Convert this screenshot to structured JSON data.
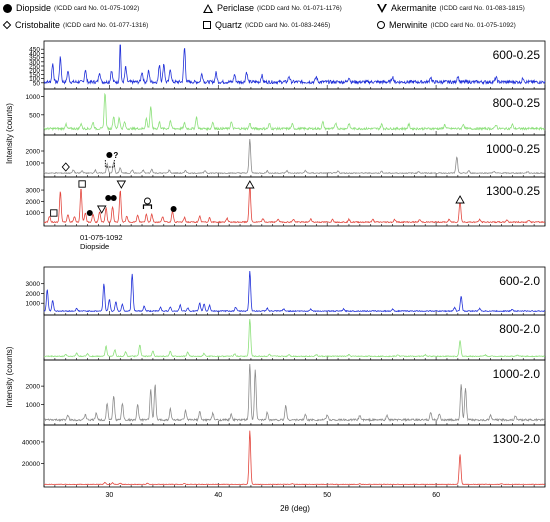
{
  "legend": [
    {
      "symbol": "filled-circle",
      "icon": "filled-circle-icon",
      "name": "Diopside",
      "card": "(ICDD card No. 01-075-1092)"
    },
    {
      "symbol": "open-triangle-up",
      "icon": "open-triangle-icon",
      "name": "Periclase",
      "card": "(ICDD card No. 01-071-1176)"
    },
    {
      "symbol": "open-triangle-down",
      "icon": "open-inverted-triangle-icon",
      "name": "Akermanite",
      "card": "(ICDD card No. 01-083-1815)"
    },
    {
      "symbol": "open-diamond",
      "icon": "open-diamond-icon",
      "name": "Cristobalite",
      "card": "(ICDD card No. 01-077-1316)"
    },
    {
      "symbol": "open-square",
      "icon": "open-square-icon",
      "name": "Quartz",
      "card": "(ICDD card No. 01-083-2465)"
    },
    {
      "symbol": "open-circle",
      "icon": "open-circle-icon",
      "name": "Merwinite",
      "card": "(ICDD card No. 01-075-1092)"
    }
  ],
  "chart_data": [
    {
      "type": "line",
      "xlabel": "",
      "ylabel": "Intensity (counts)",
      "xlim": [
        24,
        70
      ],
      "x_ticks": [
        30,
        40,
        50,
        60
      ],
      "x_tick_labels": [
        "",
        "",
        "",
        ""
      ],
      "grid": false,
      "panels": [
        {
          "name": "600-0.25",
          "color": "#1f2fd8",
          "ylim": [
            0,
            500
          ],
          "y_ticks": [
            50,
            100,
            150,
            200,
            250,
            300,
            350,
            400,
            450
          ],
          "peaks": [
            [
              24.8,
              220
            ],
            [
              25.5,
              290
            ],
            [
              26.2,
              130
            ],
            [
              27.8,
              150
            ],
            [
              29.1,
              120
            ],
            [
              30.2,
              140
            ],
            [
              31.5,
              180
            ],
            [
              33.0,
              120
            ],
            [
              33.6,
              130
            ],
            [
              34.6,
              210
            ],
            [
              35.0,
              220
            ],
            [
              35.6,
              160
            ],
            [
              36.9,
              410
            ],
            [
              38.5,
              100
            ],
            [
              39.8,
              110
            ],
            [
              41.5,
              90
            ],
            [
              42.6,
              120
            ],
            [
              44.0,
              80
            ],
            [
              46.5,
              70
            ],
            [
              49.0,
              60
            ],
            [
              52.0,
              60
            ],
            [
              56.0,
              65
            ],
            [
              59.5,
              60
            ],
            [
              62.0,
              75
            ],
            [
              65.5,
              55
            ],
            [
              68.0,
              50
            ]
          ],
          "spike": [
            31.0,
            500
          ],
          "baseline": 40,
          "noise": 40
        },
        {
          "name": "800-0.25",
          "color": "#8ce07a",
          "ylim": [
            0,
            1100
          ],
          "y_ticks": [
            500,
            1000
          ],
          "peaks": [
            [
              26.0,
              120
            ],
            [
              27.4,
              140
            ],
            [
              28.5,
              180
            ],
            [
              29.6,
              1000
            ],
            [
              30.4,
              340
            ],
            [
              30.9,
              310
            ],
            [
              31.4,
              180
            ],
            [
              33.4,
              280
            ],
            [
              33.8,
              620
            ],
            [
              34.6,
              180
            ],
            [
              35.6,
              230
            ],
            [
              36.9,
              150
            ],
            [
              38.0,
              320
            ],
            [
              39.5,
              180
            ],
            [
              41.2,
              180
            ],
            [
              42.9,
              150
            ],
            [
              44.7,
              140
            ],
            [
              46.8,
              120
            ],
            [
              49.6,
              180
            ],
            [
              50.8,
              160
            ],
            [
              52.0,
              140
            ],
            [
              55.0,
              120
            ],
            [
              57.5,
              120
            ],
            [
              60.8,
              110
            ],
            [
              62.5,
              130
            ],
            [
              65.5,
              110
            ],
            [
              67.0,
              120
            ]
          ],
          "baseline": 90,
          "noise": 60
        },
        {
          "name": "1000-0.25",
          "color": "#8c8c8c",
          "ylim": [
            0,
            3000
          ],
          "y_ticks": [
            1000,
            2000
          ],
          "peaks": [
            [
              26.7,
              260
            ],
            [
              27.5,
              200
            ],
            [
              28.7,
              260
            ],
            [
              29.8,
              820
            ],
            [
              30.4,
              900
            ],
            [
              31.0,
              430
            ],
            [
              32.1,
              260
            ],
            [
              33.1,
              250
            ],
            [
              33.9,
              320
            ],
            [
              35.5,
              250
            ],
            [
              37.0,
              230
            ],
            [
              38.8,
              210
            ],
            [
              42.9,
              2900
            ],
            [
              44.5,
              180
            ],
            [
              46.3,
              200
            ],
            [
              48.0,
              220
            ],
            [
              51.0,
              170
            ],
            [
              55.0,
              150
            ],
            [
              58.4,
              140
            ],
            [
              61.9,
              1350
            ],
            [
              63.0,
              200
            ],
            [
              65.3,
              140
            ],
            [
              68.4,
              120
            ]
          ],
          "baseline": 120,
          "noise": 80
        },
        {
          "name": "1300-0.25",
          "color": "#e2453c",
          "ylim": [
            0,
            3800
          ],
          "y_ticks": [
            1000,
            2000,
            3000
          ],
          "peaks": [
            [
              24.5,
              500
            ],
            [
              25.5,
              2700
            ],
            [
              26.2,
              650
            ],
            [
              26.8,
              500
            ],
            [
              27.4,
              3000
            ],
            [
              27.8,
              800
            ],
            [
              28.5,
              700
            ],
            [
              29.1,
              900
            ],
            [
              29.7,
              1300
            ],
            [
              30.3,
              1350
            ],
            [
              31.0,
              2800
            ],
            [
              31.6,
              500
            ],
            [
              32.6,
              600
            ],
            [
              33.4,
              700
            ],
            [
              33.9,
              700
            ],
            [
              34.9,
              500
            ],
            [
              35.8,
              1000
            ],
            [
              36.9,
              400
            ],
            [
              38.3,
              500
            ],
            [
              39.2,
              400
            ],
            [
              40.8,
              350
            ],
            [
              42.9,
              3350
            ],
            [
              44.1,
              300
            ],
            [
              45.5,
              280
            ],
            [
              46.9,
              260
            ],
            [
              48.5,
              300
            ],
            [
              50.5,
              260
            ],
            [
              52.0,
              230
            ],
            [
              54.2,
              230
            ],
            [
              56.2,
              230
            ],
            [
              58.5,
              220
            ],
            [
              61.2,
              230
            ],
            [
              62.2,
              1850
            ],
            [
              64.0,
              230
            ],
            [
              66.5,
              200
            ],
            [
              68.5,
              180
            ]
          ],
          "baseline": 120,
          "noise": 100
        }
      ],
      "panel_labels": [
        "600-0.25",
        "800-0.25",
        "1000-0.25",
        "1300-0.25"
      ],
      "annotations": [
        {
          "text": "01-075-1092",
          "x": 29.0
        },
        {
          "text": "Diopside",
          "x": 29.0
        }
      ],
      "peak_markers": [
        {
          "panel": "1300-0.25",
          "x": 24.9,
          "symbol": "open-square"
        },
        {
          "panel": "1300-0.25",
          "x": 26.0,
          "symbol": "open-diamond"
        },
        {
          "panel": "1300-0.25",
          "x": 27.5,
          "symbol": "open-square"
        },
        {
          "panel": "1300-0.25",
          "x": 28.2,
          "symbol": "filled-circle"
        },
        {
          "panel": "1300-0.25",
          "x": 29.3,
          "symbol": "open-triangle-down"
        },
        {
          "panel": "1300-0.25",
          "x": 29.9,
          "symbol": "filled-circle"
        },
        {
          "panel": "1300-0.25",
          "x": 30.4,
          "symbol": "filled-circle"
        },
        {
          "panel": "1300-0.25",
          "x": 31.1,
          "symbol": "open-triangle-down"
        },
        {
          "panel": "1300-0.25",
          "x": 33.5,
          "symbol": "open-circle"
        },
        {
          "panel": "1300-0.25",
          "x": 35.9,
          "symbol": "filled-circle"
        },
        {
          "panel": "1300-0.25",
          "x": 42.9,
          "symbol": "open-triangle-up"
        },
        {
          "panel": "1300-0.25",
          "x": 62.2,
          "symbol": "open-triangle-up"
        },
        {
          "panel": "1000-0.25",
          "x": 30.0,
          "symbol": "filled-circle",
          "note": "?"
        }
      ]
    },
    {
      "type": "line",
      "xlabel": "2θ (deg)",
      "ylabel": "Intensity (counts)",
      "xlim": [
        24,
        70
      ],
      "x_ticks": [
        30,
        40,
        50,
        60
      ],
      "x_tick_labels": [
        "30",
        "40",
        "50",
        "60"
      ],
      "grid": false,
      "panels": [
        {
          "name": "600-2.0",
          "color": "#1f2fd8",
          "ylim": [
            0,
            4300
          ],
          "y_ticks": [
            1000,
            2000,
            3000
          ],
          "peaks": [
            [
              24.3,
              2200
            ],
            [
              24.8,
              1100
            ],
            [
              27.0,
              250
            ],
            [
              29.5,
              2800
            ],
            [
              30.0,
              1200
            ],
            [
              30.6,
              1000
            ],
            [
              31.2,
              700
            ],
            [
              32.1,
              3800
            ],
            [
              33.2,
              500
            ],
            [
              34.7,
              400
            ],
            [
              35.6,
              450
            ],
            [
              36.5,
              600
            ],
            [
              37.2,
              300
            ],
            [
              38.3,
              800
            ],
            [
              38.7,
              750
            ],
            [
              39.2,
              600
            ],
            [
              41.6,
              400
            ],
            [
              42.9,
              4150
            ],
            [
              44.5,
              300
            ],
            [
              46.0,
              220
            ],
            [
              48.5,
              230
            ],
            [
              51.5,
              200
            ],
            [
              56.0,
              200
            ],
            [
              61.7,
              350
            ],
            [
              62.3,
              1500
            ],
            [
              64.0,
              250
            ],
            [
              67.0,
              200
            ]
          ],
          "baseline": 150,
          "noise": 100
        },
        {
          "name": "800-2.0",
          "color": "#8ce07a",
          "ylim": [
            0,
            3000
          ],
          "y_ticks": [],
          "peaks": [
            [
              26.0,
              150
            ],
            [
              27.0,
              250
            ],
            [
              28.0,
              200
            ],
            [
              29.7,
              800
            ],
            [
              30.5,
              500
            ],
            [
              31.5,
              350
            ],
            [
              32.8,
              900
            ],
            [
              34.0,
              400
            ],
            [
              35.6,
              380
            ],
            [
              37.2,
              300
            ],
            [
              38.7,
              220
            ],
            [
              41.5,
              200
            ],
            [
              42.9,
              2950
            ],
            [
              44.7,
              150
            ],
            [
              46.5,
              150
            ],
            [
              49.0,
              130
            ],
            [
              52.0,
              120
            ],
            [
              56.5,
              120
            ],
            [
              59.0,
              110
            ],
            [
              62.2,
              1200
            ],
            [
              64.5,
              110
            ],
            [
              67.5,
              100
            ]
          ],
          "baseline": 100,
          "noise": 70
        },
        {
          "name": "1000-2.0",
          "color": "#8c8c8c",
          "ylim": [
            0,
            3200
          ],
          "y_ticks": [
            1000,
            2000
          ],
          "peaks": [
            [
              26.2,
              250
            ],
            [
              27.8,
              300
            ],
            [
              28.8,
              400
            ],
            [
              29.8,
              900
            ],
            [
              30.4,
              1300
            ],
            [
              31.2,
              900
            ],
            [
              32.6,
              800
            ],
            [
              33.8,
              1700
            ],
            [
              34.2,
              1900
            ],
            [
              35.6,
              600
            ],
            [
              37.0,
              500
            ],
            [
              38.3,
              450
            ],
            [
              39.5,
              350
            ],
            [
              41.2,
              300
            ],
            [
              42.9,
              3100
            ],
            [
              43.4,
              2700
            ],
            [
              44.5,
              400
            ],
            [
              46.2,
              800
            ],
            [
              48.0,
              300
            ],
            [
              50.0,
              280
            ],
            [
              53.0,
              250
            ],
            [
              55.5,
              250
            ],
            [
              59.5,
              400
            ],
            [
              60.3,
              350
            ],
            [
              62.3,
              1900
            ],
            [
              62.7,
              1700
            ],
            [
              65.0,
              260
            ],
            [
              67.3,
              220
            ]
          ],
          "baseline": 120,
          "noise": 100
        },
        {
          "name": "1300-2.0",
          "color": "#e2453c",
          "ylim": [
            0,
            52000
          ],
          "y_ticks": [
            20000,
            40000
          ],
          "peaks": [
            [
              29.6,
              1800
            ],
            [
              30.3,
              1500
            ],
            [
              31.0,
              1200
            ],
            [
              33.5,
              1100
            ],
            [
              36.9,
              900
            ],
            [
              42.9,
              50000
            ],
            [
              46.8,
              600
            ],
            [
              53.0,
              500
            ],
            [
              62.2,
              28000
            ],
            [
              66.0,
              500
            ]
          ],
          "baseline": 400,
          "noise": 400
        }
      ],
      "panel_labels": [
        "600-2.0",
        "800-2.0",
        "1000-2.0",
        "1300-2.0"
      ]
    }
  ]
}
